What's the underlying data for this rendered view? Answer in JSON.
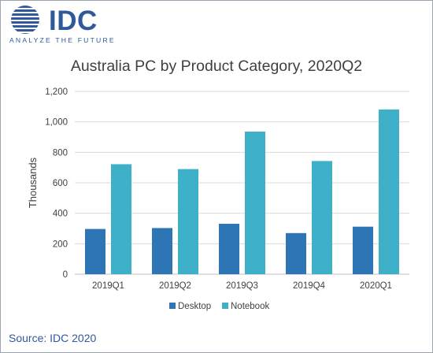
{
  "brand": {
    "name": "IDC",
    "tagline": "ANALYZE THE FUTURE",
    "color": "#2e5a9c"
  },
  "source_text": "Source: IDC 2020",
  "colors": {
    "desktop": "#2e75b6",
    "notebook": "#3eb0c8",
    "text": "#404040",
    "grid": "#d9d9d9",
    "source": "#2e5a9c"
  },
  "chart_data": {
    "type": "bar",
    "title": "Australia PC by Product Category, 2020Q2",
    "xlabel": "",
    "ylabel": "Thousands",
    "categories": [
      "2019Q1",
      "2019Q2",
      "2019Q3",
      "2019Q4",
      "2020Q1"
    ],
    "series": [
      {
        "name": "Desktop",
        "values": [
          297,
          303,
          331,
          270,
          312
        ]
      },
      {
        "name": "Notebook",
        "values": [
          722,
          690,
          936,
          743,
          1081
        ]
      }
    ],
    "ylim": [
      0,
      1200
    ],
    "yticks": [
      0,
      200,
      400,
      600,
      800,
      1000,
      1200
    ],
    "ytick_labels": [
      "0",
      "200",
      "400",
      "600",
      "800",
      "1,000",
      "1,200"
    ],
    "grid": true,
    "legend_position": "bottom"
  }
}
